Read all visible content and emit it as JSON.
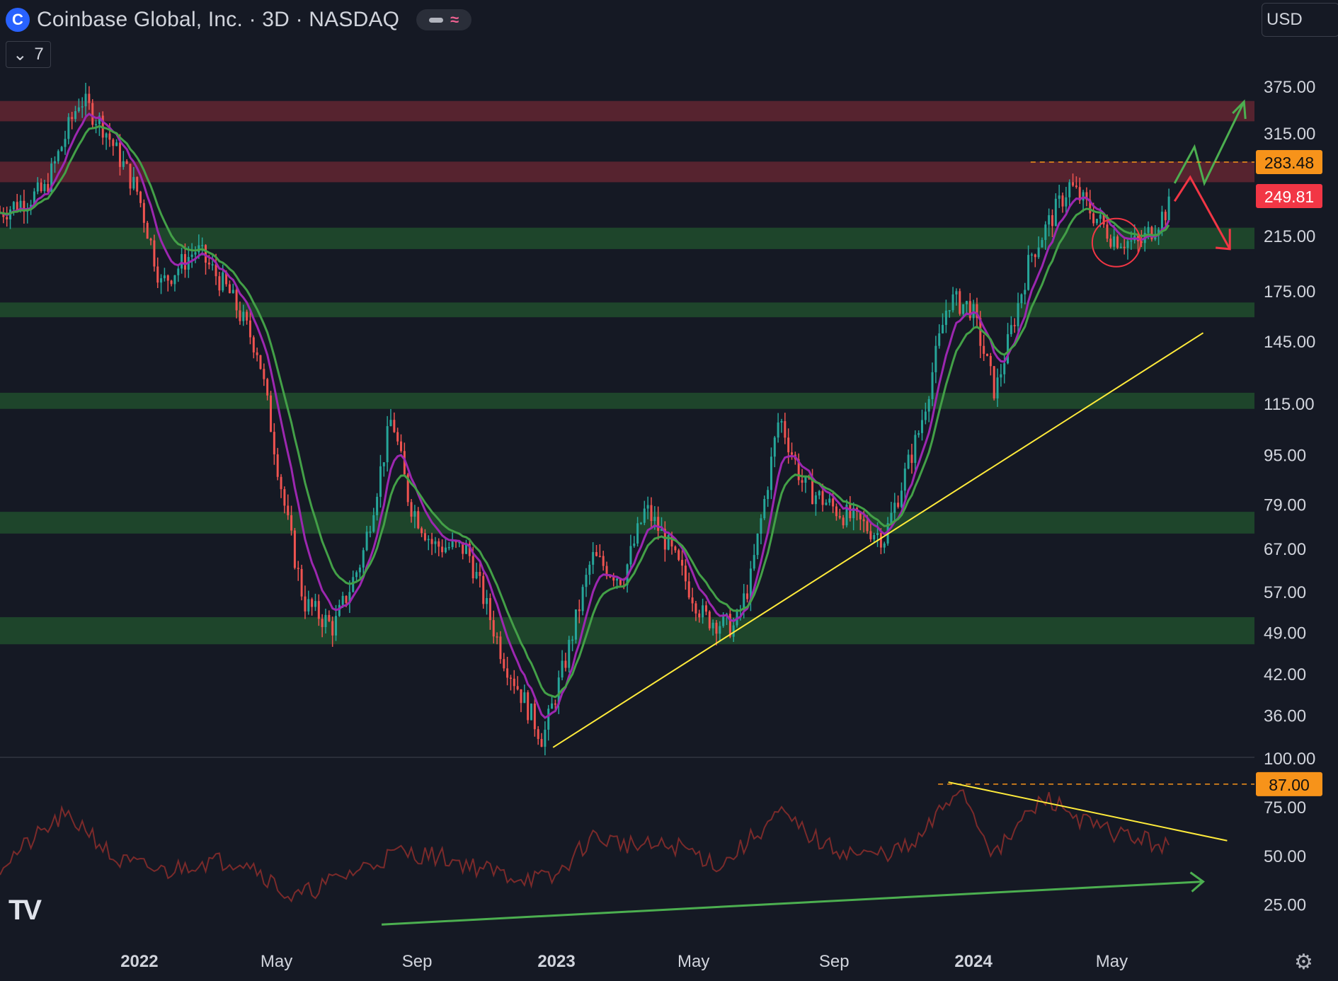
{
  "header": {
    "logo_letter": "C",
    "title": "Coinbase Global, Inc. · 3D · NASDAQ",
    "indicator_toggle": "7",
    "currency": "USD"
  },
  "colors": {
    "background": "#151924",
    "bull": "#26a69a",
    "bear": "#ef5350",
    "ema_fast": "#9c27b0",
    "ema_slow": "#43a047",
    "support_zone": "#1f4a2c",
    "resistance_zone": "#5a2430",
    "trendline": "#ffeb3b",
    "rsi": "#7b2a2a"
  },
  "chart_data": [
    {
      "type": "candlestick",
      "title": "Coinbase Global, Inc. · 3D · NASDAQ",
      "scale": "log",
      "ylim": [
        31,
        420
      ],
      "y_ticks": [
        "375.00",
        "315.00",
        "215.00",
        "175.00",
        "145.00",
        "115.00",
        "95.00",
        "79.00",
        "67.00",
        "57.00",
        "49.00",
        "42.00",
        "36.00"
      ],
      "x_ticks": [
        {
          "label": "2022",
          "date": "2022-01-01",
          "bold": true
        },
        {
          "label": "May",
          "date": "2022-05-01"
        },
        {
          "label": "Sep",
          "date": "2022-09-01"
        },
        {
          "label": "2023",
          "date": "2023-01-01",
          "bold": true
        },
        {
          "label": "May",
          "date": "2023-05-01"
        },
        {
          "label": "Sep",
          "date": "2023-09-01"
        },
        {
          "label": "2024",
          "date": "2024-01-01",
          "bold": true
        },
        {
          "label": "May",
          "date": "2024-05-01"
        }
      ],
      "price_path": [
        [
          "2021-09-01",
          235
        ],
        [
          "2021-10-10",
          255
        ],
        [
          "2021-11-10",
          360
        ],
        [
          "2021-11-30",
          325
        ],
        [
          "2021-12-31",
          252
        ],
        [
          "2022-01-20",
          180
        ],
        [
          "2022-02-20",
          205
        ],
        [
          "2022-03-20",
          175
        ],
        [
          "2022-04-15",
          140
        ],
        [
          "2022-05-10",
          75
        ],
        [
          "2022-05-25",
          55
        ],
        [
          "2022-06-20",
          50
        ],
        [
          "2022-07-15",
          65
        ],
        [
          "2022-08-10",
          110
        ],
        [
          "2022-08-25",
          80
        ],
        [
          "2022-09-15",
          68
        ],
        [
          "2022-10-15",
          67
        ],
        [
          "2022-11-15",
          45
        ],
        [
          "2022-12-20",
          33
        ],
        [
          "2023-01-10",
          45
        ],
        [
          "2023-02-01",
          65
        ],
        [
          "2023-02-28",
          60
        ],
        [
          "2023-03-20",
          78
        ],
        [
          "2023-04-05",
          70
        ],
        [
          "2023-05-10",
          52
        ],
        [
          "2023-06-06",
          50
        ],
        [
          "2023-06-20",
          60
        ],
        [
          "2023-07-15",
          110
        ],
        [
          "2023-08-05",
          85
        ],
        [
          "2023-09-01",
          78
        ],
        [
          "2023-10-15",
          70
        ],
        [
          "2023-11-15",
          105
        ],
        [
          "2023-12-10",
          170
        ],
        [
          "2023-12-30",
          165
        ],
        [
          "2024-01-20",
          120
        ],
        [
          "2024-02-20",
          200
        ],
        [
          "2024-03-25",
          260
        ],
        [
          "2024-05-01",
          215
        ],
        [
          "2024-05-25",
          208
        ],
        [
          "2024-06-20",
          240
        ]
      ],
      "ema_fast_label": "EMA (purple)",
      "ema_slow_label": "EMA (green)",
      "support_zones": [
        [
          205,
          222
        ],
        [
          159,
          168
        ],
        [
          113,
          120
        ],
        [
          71,
          77
        ],
        [
          47,
          52
        ]
      ],
      "resistance_zones": [
        [
          330,
          356
        ],
        [
          263,
          284
        ]
      ],
      "trendline": [
        [
          "2022-12-29",
          32
        ],
        [
          "2024-07-20",
          150
        ]
      ],
      "price_labels": [
        {
          "value": "283.48",
          "price": 283.48,
          "color": "#f7931a",
          "dashed_from": "2024-02-20"
        },
        {
          "value": "249.81",
          "price": 249.81,
          "color": "#f23645"
        }
      ],
      "annotations": [
        {
          "type": "circle",
          "date": "2024-05-05",
          "price": 210
        },
        {
          "type": "arrow_up",
          "color": "#4caf50"
        },
        {
          "type": "arrow_down",
          "color": "#f23645"
        }
      ]
    },
    {
      "type": "line",
      "title": "",
      "ylim": [
        10,
        100
      ],
      "y_ticks": [
        "100.00",
        "75.00",
        "50.00",
        "25.00"
      ],
      "rsi_path": [
        [
          "2021-09-01",
          45
        ],
        [
          "2021-10-25",
          70
        ],
        [
          "2021-11-15",
          65
        ],
        [
          "2021-12-10",
          48
        ],
        [
          "2022-01-25",
          42
        ],
        [
          "2022-02-20",
          47
        ],
        [
          "2022-04-05",
          48
        ],
        [
          "2022-05-15",
          28
        ],
        [
          "2022-06-10",
          35
        ],
        [
          "2022-07-15",
          44
        ],
        [
          "2022-08-15",
          52
        ],
        [
          "2022-09-20",
          50
        ],
        [
          "2022-11-20",
          40
        ],
        [
          "2022-12-29",
          38
        ],
        [
          "2023-02-01",
          60
        ],
        [
          "2023-03-15",
          55
        ],
        [
          "2023-04-20",
          55
        ],
        [
          "2023-05-25",
          45
        ],
        [
          "2023-07-15",
          72
        ],
        [
          "2023-08-25",
          55
        ],
        [
          "2023-10-01",
          50
        ],
        [
          "2023-11-10",
          55
        ],
        [
          "2023-12-20",
          86
        ],
        [
          "2024-01-20",
          50
        ],
        [
          "2024-02-15",
          70
        ],
        [
          "2024-03-05",
          80
        ],
        [
          "2024-04-15",
          65
        ],
        [
          "2024-06-20",
          55
        ]
      ],
      "level_label": {
        "value": "87.00",
        "rsi": 87,
        "color": "#f7931a",
        "dashed_from": "2023-12-01"
      },
      "bearish_divergence_line": [
        [
          "2023-12-10",
          88
        ],
        [
          "2024-08-10",
          58
        ]
      ],
      "rising_arrow": [
        [
          "2022-08-01",
          15
        ],
        [
          "2024-07-20",
          37
        ]
      ]
    }
  ]
}
